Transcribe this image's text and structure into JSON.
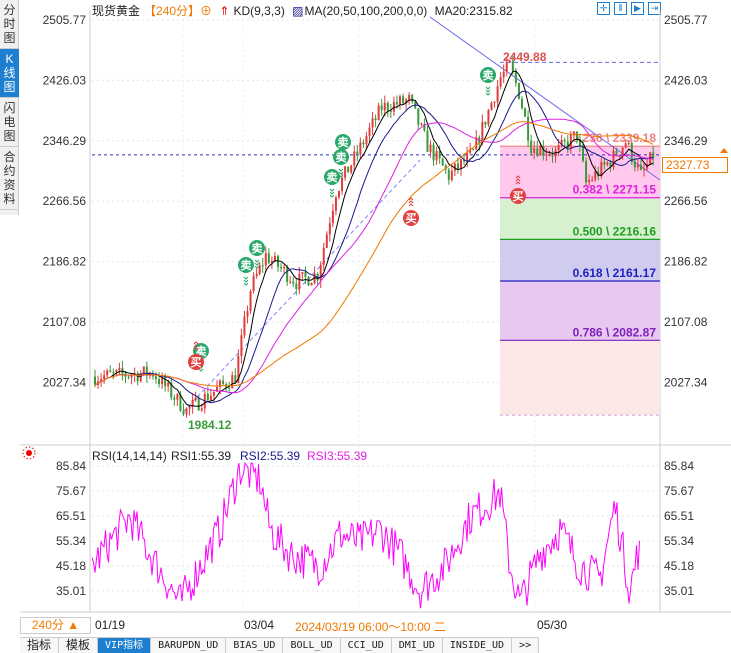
{
  "sidebar": {
    "items": [
      {
        "label": "分时图"
      },
      {
        "label": "K线图",
        "selected": true
      },
      {
        "label": "闪电图"
      },
      {
        "label": "合约资料"
      }
    ]
  },
  "header": {
    "symbol": "现货黄金",
    "period": "【240分】",
    "kd": "KD(9,3,3)",
    "ma": "MA(20,50,100,200,0,0)",
    "ma20": "MA20:2315.82",
    "toolbar_icons": [
      "crosshair-icon",
      "range-icon",
      "step-icon",
      "end-icon"
    ]
  },
  "colors": {
    "up": "#e03c3c",
    "down": "#3a9a3a",
    "ma1": "#000000",
    "ma2": "#1a1a8c",
    "ma3": "#e020e0",
    "ma4": "#f07800",
    "rsi": "#ff00ff",
    "accent": "#1e7fd0"
  },
  "current_price": "2327.73",
  "rsi_header": {
    "name": "RSI(14,14,14)",
    "rsi1": "RSI1:55.39",
    "rsi2": "RSI2:55.39",
    "rsi3": "RSI3:55.39"
  },
  "bottom": {
    "period": "240分 ▲",
    "dates": [
      "01/19",
      "03/04",
      "2024/03/19 06:00～10:00 二",
      "05/30"
    ],
    "tabs": [
      "指标",
      "模板",
      "VIP指标",
      "BARUPDN_UD",
      "BIAS_UD",
      "BOLL_UD",
      "CCI_UD",
      "DMI_UD",
      "INSIDE_UD",
      ">>"
    ]
  },
  "chart_data": [
    {
      "type": "candlestick",
      "title": "现货黄金",
      "ylim": [
        1984.12,
        2505.77
      ],
      "yticks": [
        "2505.77",
        "2426.03",
        "2346.29",
        "2266.56",
        "2186.82",
        "2107.08",
        "2027.34"
      ],
      "annotations": {
        "high": "2449.88",
        "low": "1984.12"
      },
      "approx_close": [
        2035,
        2040,
        1990,
        2035,
        2150,
        2190,
        2160,
        2170,
        2280,
        2330,
        2390,
        2400,
        2340,
        2300,
        2330,
        2430,
        2445,
        2410,
        2340,
        2330,
        2355,
        2290,
        2320,
        2345,
        2300,
        2327
      ],
      "fib_levels": [
        {
          "label": "0.236 \\ 2339.18",
          "value": 2339.18,
          "color": "#f08080"
        },
        {
          "label": "0.382 \\ 2271.15",
          "value": 2271.15,
          "color": "#e020e0"
        },
        {
          "label": "0.500 \\ 2216.16",
          "value": 2216.16,
          "color": "#20a020"
        },
        {
          "label": "0.618 \\ 2161.17",
          "value": 2161.17,
          "color": "#2020c0"
        },
        {
          "label": "0.786 \\ 2082.87",
          "value": 2082.87,
          "color": "#8020c0"
        }
      ],
      "signals": {
        "sell": "卖",
        "buy": "买"
      }
    },
    {
      "type": "line",
      "title": "RSI(14,14,14)",
      "ylim": [
        30,
        88
      ],
      "yticks": [
        "85.84",
        "75.67",
        "65.51",
        "55.34",
        "45.18",
        "35.01"
      ],
      "last": 55.39
    }
  ]
}
